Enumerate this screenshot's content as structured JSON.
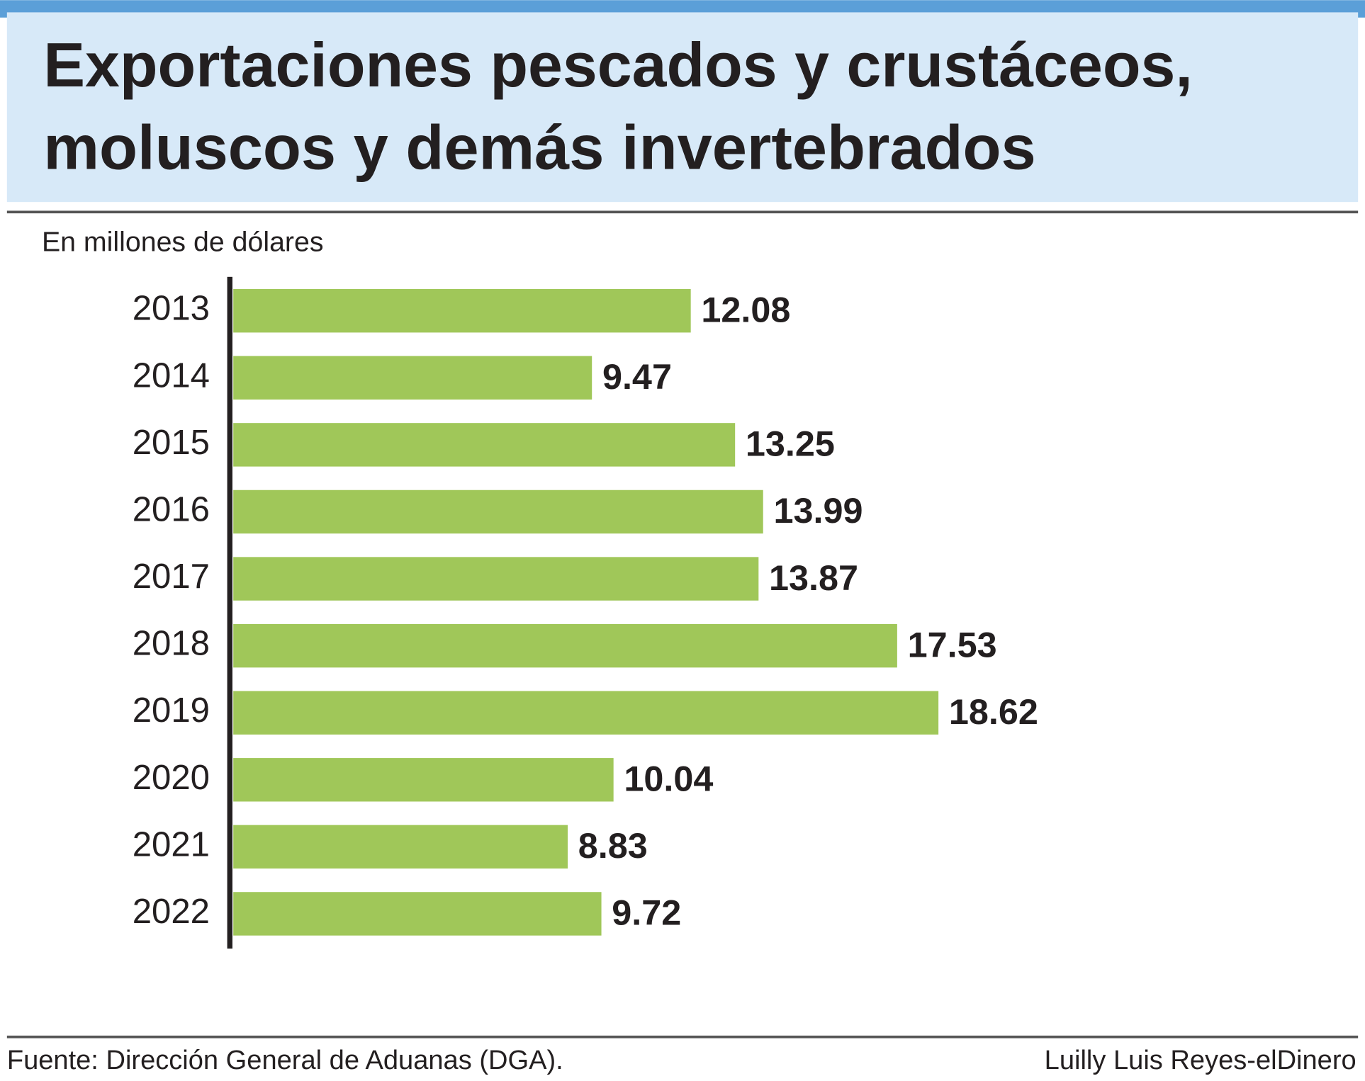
{
  "chart_data": {
    "type": "bar",
    "orientation": "horizontal",
    "title": [
      "Exportaciones pescados y crustáceos,",
      "moluscos y demás invertebrados"
    ],
    "subtitle": "En millones de dólares",
    "categories": [
      "2013",
      "2014",
      "2015",
      "2016",
      "2017",
      "2018",
      "2019",
      "2020",
      "2021",
      "2022"
    ],
    "values": [
      12.08,
      9.47,
      13.25,
      13.99,
      13.87,
      17.53,
      18.62,
      10.04,
      8.83,
      9.72
    ],
    "color": "#a0c759",
    "source": "Fuente: Dirección General de Aduanas (DGA).",
    "credit": "Luilly Luis Reyes-elDinero"
  }
}
